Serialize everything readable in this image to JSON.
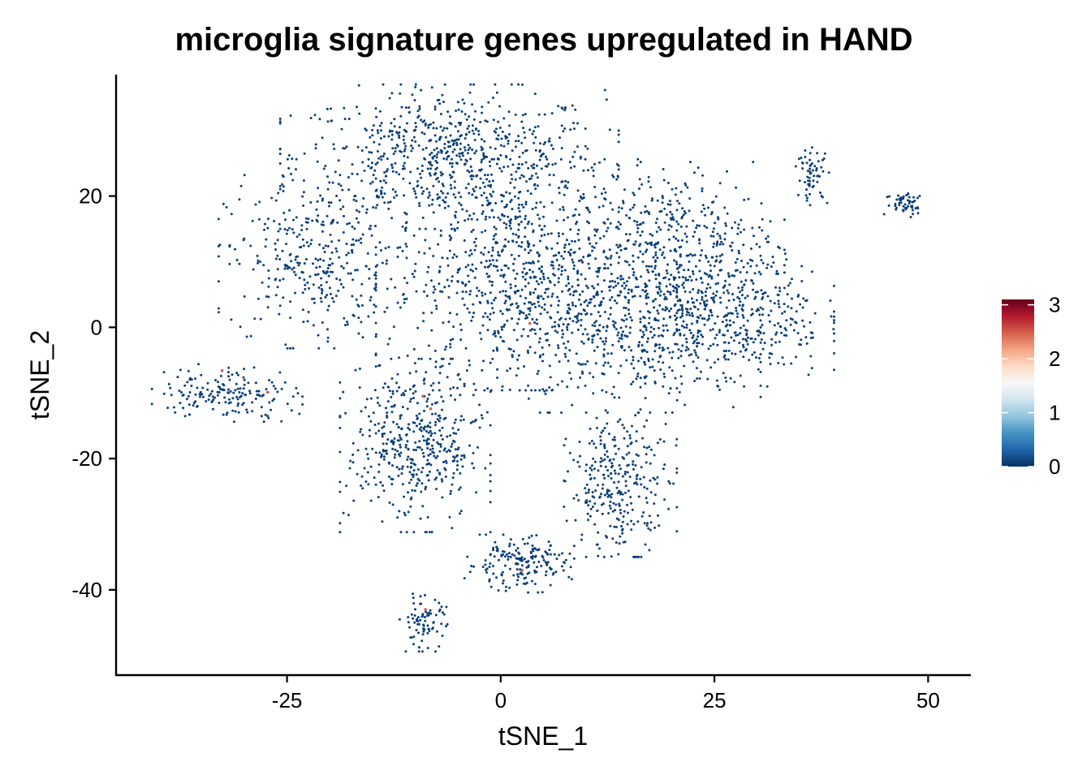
{
  "chart_data": {
    "type": "scatter",
    "title": "microglia signature genes upregulated in HAND",
    "xlabel": "tSNE_1",
    "ylabel": "tSNE_2",
    "xlim": [
      -45,
      55
    ],
    "ylim": [
      -53,
      38.5
    ],
    "x_ticks": [
      -25,
      0,
      25,
      50
    ],
    "y_ticks": [
      -40,
      -20,
      0,
      20
    ],
    "x_tick_labels": [
      "-25",
      "0",
      "25",
      "50"
    ],
    "y_tick_labels": [
      "-40",
      "-20",
      "0",
      "20"
    ],
    "grid": false,
    "legend": {
      "placement": "right",
      "type": "colorbar",
      "min": 0,
      "max": 3.1,
      "ticks": [
        0,
        1,
        2,
        3
      ],
      "tick_labels": [
        "0",
        "1",
        "2",
        "3"
      ],
      "colors": [
        "#053061",
        "#2166ac",
        "#4393c3",
        "#92c5de",
        "#d1e5f0",
        "#f7f7f7",
        "#fddbc7",
        "#f4a582",
        "#d6604d",
        "#b2182b",
        "#67001f"
      ]
    },
    "point_color_low": "#0b3f78",
    "point_color_high": "#d6604d",
    "clusters": [
      {
        "cx": -6,
        "cy": 26,
        "sx": 9,
        "sy": 5,
        "n": 700
      },
      {
        "cx": -22,
        "cy": 10,
        "sx": 5,
        "sy": 6,
        "n": 340
      },
      {
        "cx": 3,
        "cy": 8,
        "sx": 8,
        "sy": 8,
        "n": 850
      },
      {
        "cx": 20,
        "cy": 12,
        "sx": 6,
        "sy": 6,
        "n": 420
      },
      {
        "cx": 28,
        "cy": 2,
        "sx": 5,
        "sy": 5,
        "n": 360
      },
      {
        "cx": 15,
        "cy": -2,
        "sx": 7,
        "sy": 5,
        "n": 380
      },
      {
        "cx": -10,
        "cy": -18,
        "sx": 4,
        "sy": 6,
        "n": 460
      },
      {
        "cx": 14,
        "cy": -24,
        "sx": 3,
        "sy": 5,
        "n": 300
      },
      {
        "cx": -32,
        "cy": -10,
        "sx": 4,
        "sy": 2,
        "n": 170
      },
      {
        "cx": 2,
        "cy": -36,
        "sx": 3,
        "sy": 2,
        "n": 180
      },
      {
        "cx": -9,
        "cy": -45,
        "sx": 1.3,
        "sy": 2,
        "n": 80
      },
      {
        "cx": 36.5,
        "cy": 23,
        "sx": 0.9,
        "sy": 2,
        "n": 60
      },
      {
        "cx": 47.5,
        "cy": 19,
        "sx": 1.2,
        "sy": 1,
        "n": 55
      }
    ],
    "highlighted_points": [
      {
        "x": -32.6,
        "y": -6.6,
        "value": 2.1
      },
      {
        "x": -27.3,
        "y": -9.9,
        "value": 2.0
      },
      {
        "x": -8.2,
        "y": -12.4,
        "value": 2.2
      },
      {
        "x": -9.1,
        "y": -10.5,
        "value": 1.9
      },
      {
        "x": -8.8,
        "y": -43,
        "value": 2.1
      },
      {
        "x": 2.5,
        "y": -37,
        "value": 2.0
      },
      {
        "x": 3.4,
        "y": 0.6,
        "value": 1.8
      }
    ]
  }
}
